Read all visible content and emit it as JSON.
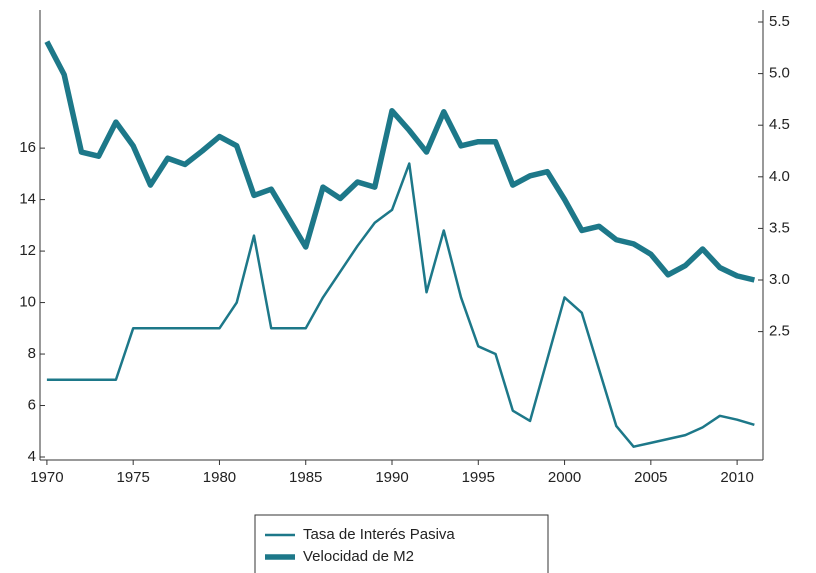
{
  "chart_data": {
    "type": "line",
    "x": [
      1970,
      1971,
      1972,
      1973,
      1974,
      1975,
      1976,
      1977,
      1978,
      1979,
      1980,
      1981,
      1982,
      1983,
      1984,
      1985,
      1986,
      1987,
      1988,
      1989,
      1990,
      1991,
      1992,
      1993,
      1994,
      1995,
      1996,
      1997,
      1998,
      1999,
      2000,
      2001,
      2002,
      2003,
      2004,
      2005,
      2006,
      2007,
      2008,
      2009,
      2010,
      2011
    ],
    "xlim": [
      1969.6,
      2011.5
    ],
    "xticks": [
      1970,
      1975,
      1980,
      1985,
      1990,
      1995,
      2000,
      2005,
      2010
    ],
    "ylim": [
      4,
      20.9
    ],
    "yticks": [
      4,
      6,
      8,
      10,
      12,
      14,
      16
    ],
    "y2lim": [
      1.285,
      5.5
    ],
    "y2ticks": [
      2.5,
      {
        "value": 3,
        "label": "3.0"
      },
      3.5,
      {
        "value": 4,
        "label": "4.0"
      },
      4.5,
      {
        "value": 5,
        "label": "5.0"
      },
      5.5
    ],
    "grid": false,
    "legend": "bottom",
    "series": [
      {
        "name": "Tasa de Interés Pasiva",
        "color": "#1d7889",
        "axis": "y",
        "values": [
          7,
          7,
          7,
          7,
          7,
          9,
          9,
          9,
          9,
          9,
          9,
          10,
          12.6,
          9,
          9,
          9,
          10.2,
          11.2,
          12.2,
          13.1,
          13.6,
          15.4,
          10.4,
          12.8,
          10.2,
          8.3,
          8.0,
          5.8,
          5.4,
          7.8,
          10.2,
          9.6,
          7.4,
          5.2,
          4.4,
          4.55,
          4.7,
          4.85,
          5.15,
          5.6,
          5.45,
          5.25
        ]
      },
      {
        "name": "Velocidad de M2",
        "color": "#1d7889",
        "axis": "y2",
        "values": [
          5.31,
          4.99,
          4.24,
          4.2,
          4.53,
          4.3,
          3.92,
          4.18,
          4.12,
          4.25,
          4.39,
          4.3,
          3.82,
          3.88,
          3.6,
          3.32,
          3.9,
          3.79,
          3.95,
          3.9,
          4.64,
          4.45,
          4.24,
          4.63,
          4.3,
          4.34,
          4.34,
          3.92,
          4.01,
          4.05,
          3.78,
          3.48,
          3.52,
          3.39,
          3.35,
          3.25,
          3.05,
          3.14,
          3.3,
          3.12,
          3.04,
          3.0
        ]
      }
    ]
  }
}
